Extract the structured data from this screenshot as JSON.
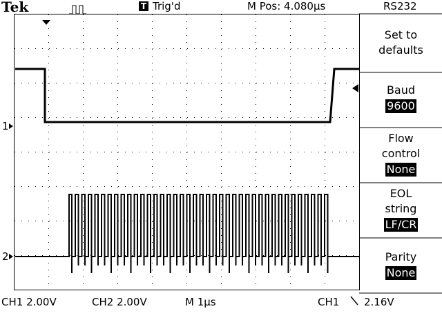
{
  "header": {
    "brand": "Tek",
    "trigger_icon": "T",
    "trigger_state": "Trig'd",
    "position": "M Pos: 4.080µs",
    "menu_title": "RS232"
  },
  "markers": {
    "ch1": "1",
    "ch2": "2"
  },
  "menu": [
    {
      "label": "Set to defaults"
    },
    {
      "label": "Baud",
      "value": "9600"
    },
    {
      "label": "Flow control",
      "value": "None"
    },
    {
      "label": "EOL string",
      "value": "LF/CR"
    },
    {
      "label": "Parity",
      "value": "None"
    }
  ],
  "footer": {
    "ch1": "CH1 2.00V",
    "ch2": "CH2 2.00V",
    "timebase": "M 1µs",
    "trigger_source": "CH1",
    "trigger_level": "2.16V"
  }
}
